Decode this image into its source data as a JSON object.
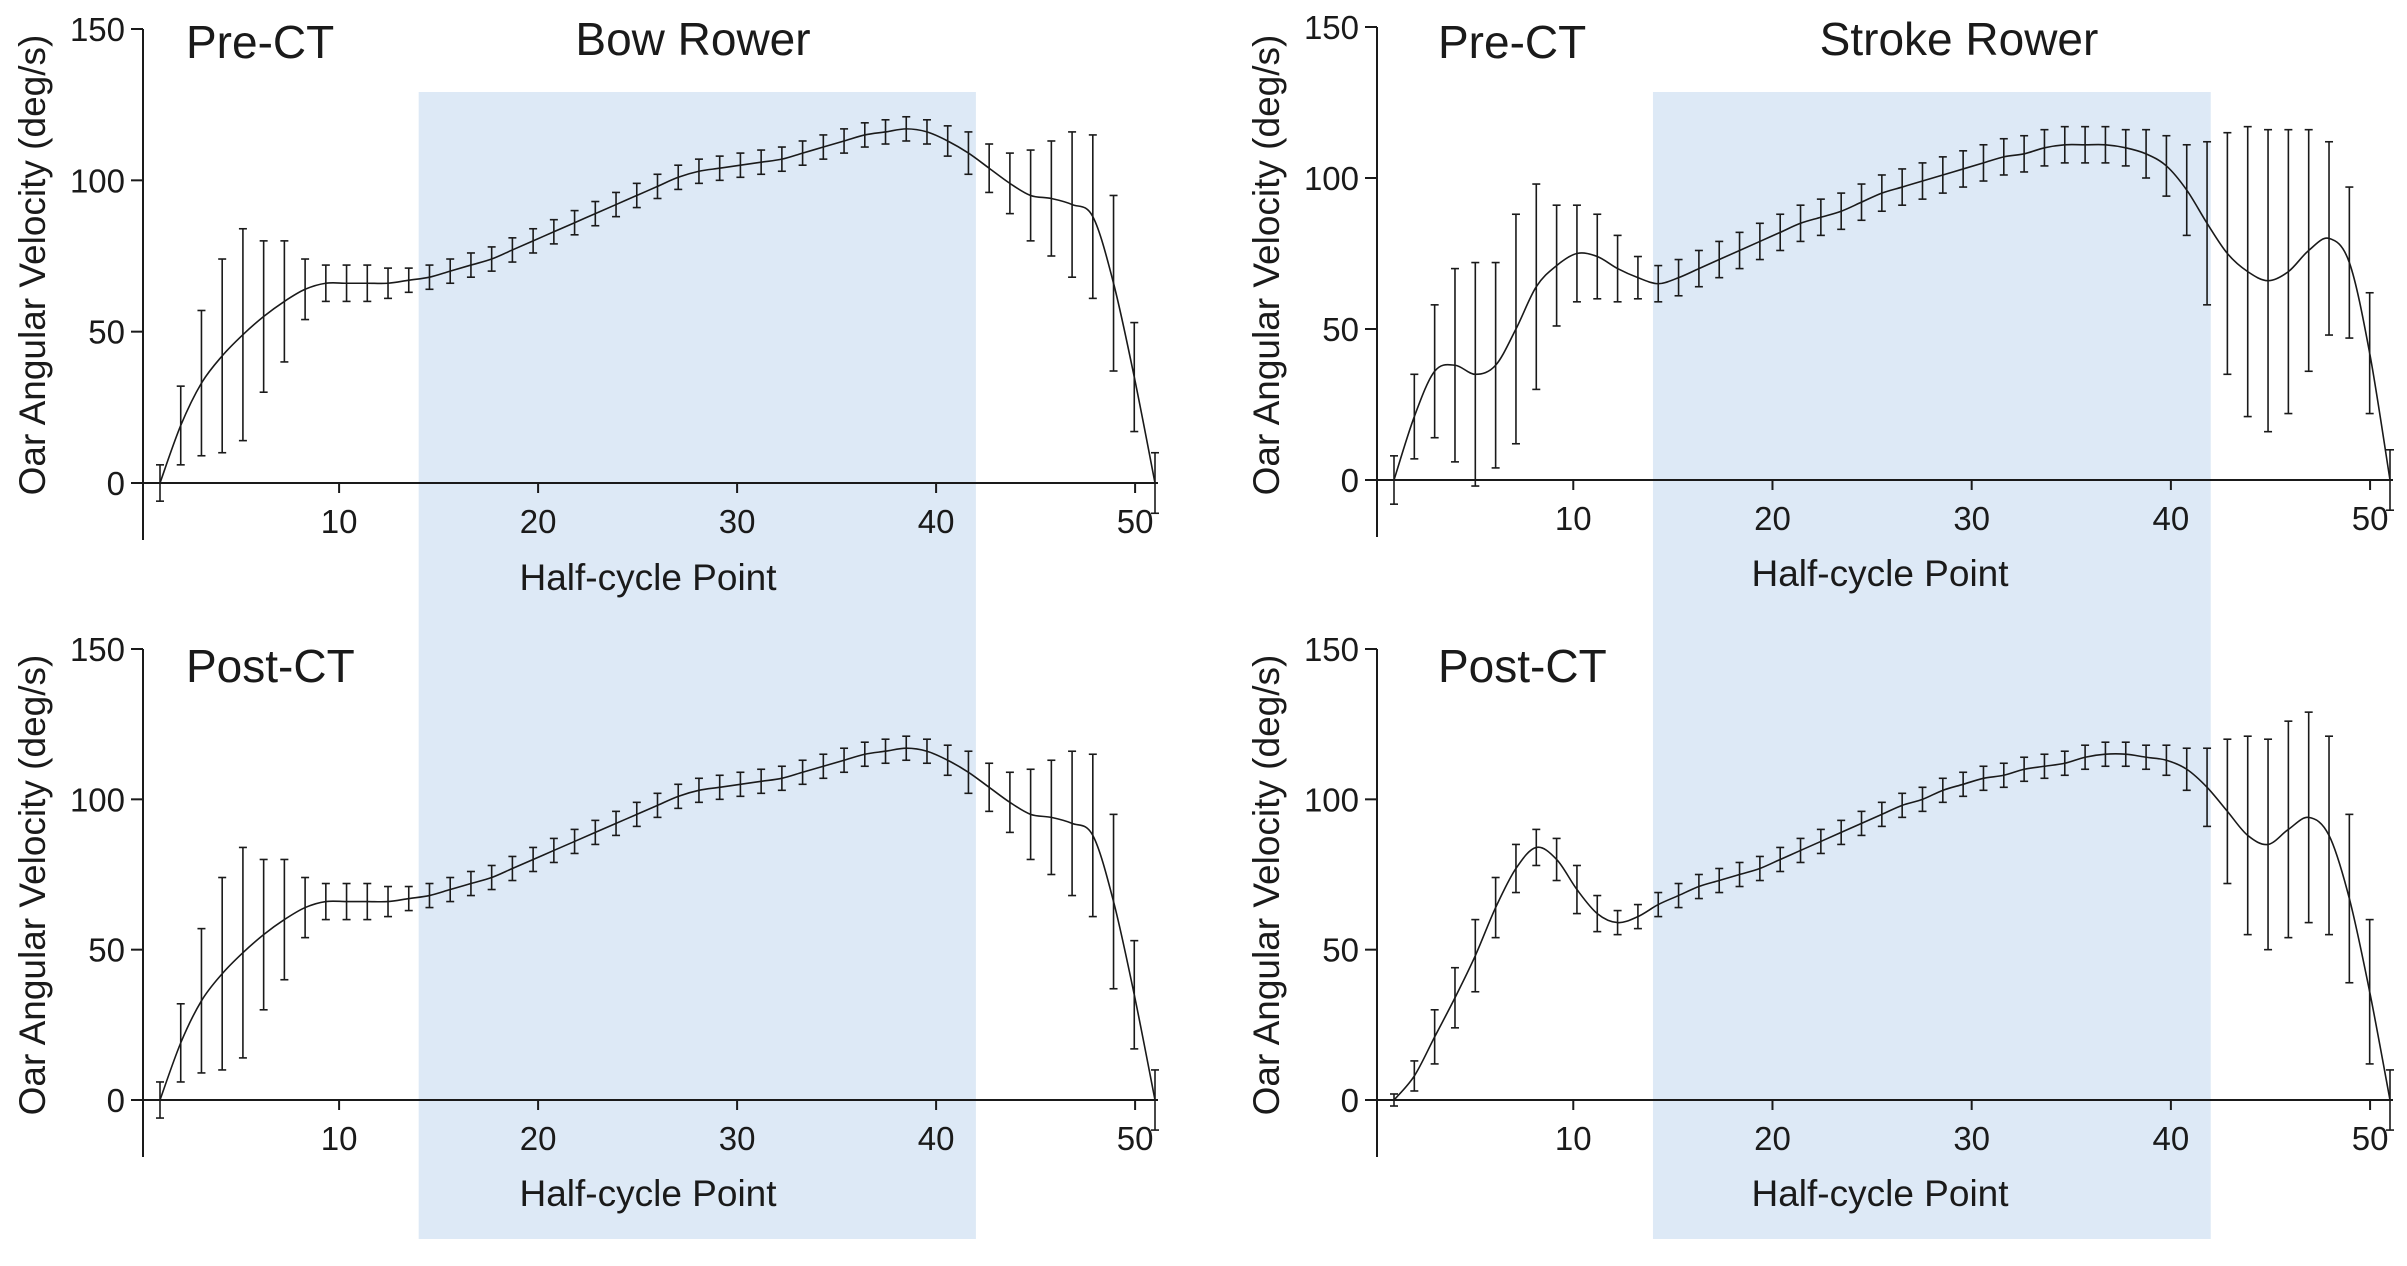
{
  "colors": {
    "shade": "#dde9f6",
    "line": "#1a1a1a"
  },
  "chart_data": [
    {
      "type": "line",
      "id": "bow-pre",
      "column_title": "Bow Rower",
      "panel_label": "Pre-CT",
      "xlabel": "Half-cycle Point",
      "ylabel": "Oar Angular Velocity (deg/s)",
      "xlim": [
        1,
        51
      ],
      "ylim": [
        0,
        150
      ],
      "xticks": [
        10,
        20,
        30,
        40,
        50
      ],
      "yticks": [
        0,
        50,
        100,
        150
      ],
      "shaded_x": [
        14,
        42
      ],
      "x_start": 1,
      "y": [
        0,
        19,
        33,
        42,
        49,
        55,
        60,
        64,
        66,
        66,
        66,
        66,
        67,
        68,
        70,
        72,
        74,
        77,
        80,
        83,
        86,
        89,
        92,
        95,
        98,
        101,
        103,
        104,
        105,
        106,
        107,
        109,
        111,
        113,
        115,
        116,
        117,
        116,
        113,
        109,
        104,
        99,
        95,
        94,
        92,
        88,
        66,
        35,
        0
      ],
      "err": [
        6,
        13,
        24,
        32,
        35,
        25,
        20,
        10,
        6,
        6,
        6,
        5,
        4,
        4,
        4,
        4,
        4,
        4,
        4,
        4,
        4,
        4,
        4,
        4,
        4,
        4,
        4,
        4,
        4,
        4,
        4,
        4,
        4,
        4,
        4,
        4,
        4,
        4,
        5,
        7,
        8,
        10,
        15,
        19,
        24,
        27,
        29,
        18,
        10
      ]
    },
    {
      "type": "line",
      "id": "stroke-pre",
      "column_title": "Stroke Rower",
      "panel_label": "Pre-CT",
      "xlabel": "Half-cycle Point",
      "ylabel": "Oar Angular Velocity (deg/s)",
      "xlim": [
        1,
        51
      ],
      "ylim": [
        0,
        150
      ],
      "xticks": [
        10,
        20,
        30,
        40,
        50
      ],
      "yticks": [
        0,
        50,
        100,
        150
      ],
      "shaded_x": [
        14,
        42
      ],
      "x_start": 1,
      "y": [
        0,
        21,
        36,
        38,
        35,
        38,
        50,
        64,
        71,
        75,
        74,
        70,
        67,
        65,
        67,
        70,
        73,
        76,
        79,
        82,
        85,
        87,
        89,
        92,
        95,
        97,
        99,
        101,
        103,
        105,
        107,
        108,
        110,
        111,
        111,
        111,
        110,
        108,
        104,
        96,
        85,
        75,
        69,
        66,
        69,
        76,
        80,
        72,
        42,
        0
      ],
      "err": [
        8,
        14,
        22,
        32,
        37,
        34,
        38,
        34,
        20,
        16,
        14,
        11,
        7,
        6,
        6,
        6,
        6,
        6,
        6,
        6,
        6,
        6,
        6,
        6,
        6,
        6,
        6,
        6,
        6,
        6,
        6,
        6,
        6,
        6,
        6,
        6,
        6,
        8,
        10,
        15,
        27,
        40,
        48,
        50,
        47,
        40,
        32,
        25,
        20,
        10
      ]
    },
    {
      "type": "line",
      "id": "bow-post",
      "panel_label": "Post-CT",
      "xlabel": "Half-cycle Point",
      "ylabel": "Oar Angular Velocity (deg/s)",
      "xlim": [
        1,
        51
      ],
      "ylim": [
        0,
        150
      ],
      "xticks": [
        10,
        20,
        30,
        40,
        50
      ],
      "yticks": [
        0,
        50,
        100,
        150
      ],
      "shaded_x": [
        14,
        42
      ],
      "x_start": 1,
      "y": [
        0,
        19,
        33,
        42,
        49,
        55,
        60,
        64,
        66,
        66,
        66,
        66,
        67,
        68,
        70,
        72,
        74,
        77,
        80,
        83,
        86,
        89,
        92,
        95,
        98,
        101,
        103,
        104,
        105,
        106,
        107,
        109,
        111,
        113,
        115,
        116,
        117,
        116,
        113,
        109,
        104,
        99,
        95,
        94,
        92,
        88,
        66,
        35,
        0
      ],
      "err": [
        6,
        13,
        24,
        32,
        35,
        25,
        20,
        10,
        6,
        6,
        6,
        5,
        4,
        4,
        4,
        4,
        4,
        4,
        4,
        4,
        4,
        4,
        4,
        4,
        4,
        4,
        4,
        4,
        4,
        4,
        4,
        4,
        4,
        4,
        4,
        4,
        4,
        4,
        5,
        7,
        8,
        10,
        15,
        19,
        24,
        27,
        29,
        18,
        10
      ]
    },
    {
      "type": "line",
      "id": "stroke-post",
      "panel_label": "Post-CT",
      "xlabel": "Half-cycle Point",
      "ylabel": "Oar Angular Velocity (deg/s)",
      "xlim": [
        1,
        51
      ],
      "ylim": [
        0,
        150
      ],
      "xticks": [
        10,
        20,
        30,
        40,
        50
      ],
      "yticks": [
        0,
        50,
        100,
        150
      ],
      "shaded_x": [
        14,
        42
      ],
      "x_start": 1,
      "y": [
        0,
        8,
        21,
        34,
        48,
        64,
        77,
        84,
        80,
        70,
        62,
        59,
        61,
        65,
        68,
        71,
        73,
        75,
        77,
        80,
        83,
        86,
        89,
        92,
        95,
        98,
        100,
        103,
        105,
        107,
        108,
        110,
        111,
        112,
        114,
        115,
        115,
        114,
        113,
        110,
        104,
        96,
        88,
        85,
        90,
        94,
        88,
        67,
        36,
        0
      ],
      "err": [
        2,
        5,
        9,
        10,
        12,
        10,
        8,
        6,
        7,
        8,
        6,
        4,
        4,
        4,
        4,
        4,
        4,
        4,
        4,
        4,
        4,
        4,
        4,
        4,
        4,
        4,
        4,
        4,
        4,
        4,
        4,
        4,
        4,
        4,
        4,
        4,
        4,
        4,
        5,
        7,
        13,
        24,
        33,
        35,
        36,
        35,
        33,
        28,
        24,
        10
      ]
    }
  ]
}
